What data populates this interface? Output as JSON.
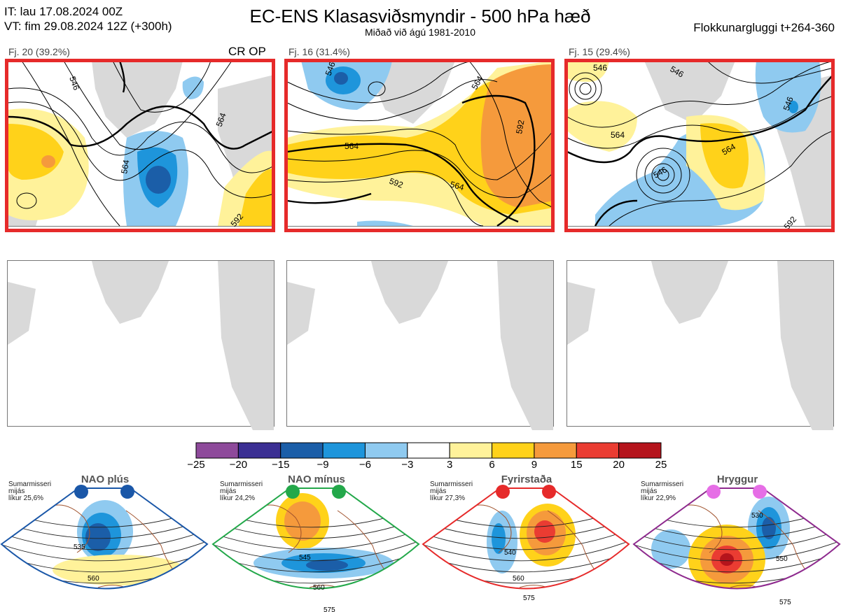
{
  "header": {
    "it_line": "IT: lau 17.08.2024 00Z",
    "vt_line": "VT: fim 29.08.2024 12Z  (+300h)",
    "title": "EC-ENS Klasasviðsmyndir - 500 hPa hæð",
    "subtitle": "Miðað við ágú 1981-2010",
    "window": "Flokkunargluggi t+264-360"
  },
  "clusters": [
    {
      "label": "Fj. 20 (39.2%)",
      "extra": "CR OP",
      "contours": [
        "564",
        "564",
        "592",
        "546"
      ]
    },
    {
      "label": "Fj. 16 (31.4%)",
      "extra": "",
      "contours": [
        "546",
        "564",
        "564",
        "592",
        "564",
        "592"
      ]
    },
    {
      "label": "Fj. 15 (29.4%)",
      "extra": "",
      "contours": [
        "546",
        "546",
        "546",
        "546",
        "564",
        "564",
        "592"
      ]
    }
  ],
  "chart_data": {
    "type": "heatmap",
    "title": "EC-ENS Klasasviðsmyndir - 500 hPa hæð",
    "colorbar": {
      "ticks": [
        "−25",
        "−20",
        "−15",
        "−9",
        "−6",
        "−3",
        "3",
        "6",
        "9",
        "15",
        "20",
        "25"
      ],
      "colors": [
        "#8e4a9b",
        "#3b2f93",
        "#1b5ea8",
        "#1e95db",
        "#8fcaf0",
        "#ffffff",
        "#fff29a",
        "#ffd21a",
        "#f59a3c",
        "#ea3c32",
        "#b5141c"
      ]
    },
    "cluster_probabilities": [
      {
        "name": "Fj. 20",
        "percent": 39.2
      },
      {
        "name": "Fj. 16",
        "percent": 31.4
      },
      {
        "name": "Fj. 15",
        "percent": 29.4
      }
    ],
    "regimes": [
      {
        "name": "NAO plús",
        "note": [
          "Sumarmisseri",
          "mijás",
          "líkur 25,6%"
        ],
        "probability_percent": 25.6,
        "contours": [
          "535",
          "560"
        ],
        "dot_color": "#1a57a8",
        "border": "#1a57a8"
      },
      {
        "name": "NAO mínus",
        "note": [
          "Sumarmisseri",
          "mijás",
          "líkur 24,2%"
        ],
        "probability_percent": 24.2,
        "contours": [
          "545",
          "560",
          "575"
        ],
        "dot_color": "#23a84a",
        "border": "#23a84a"
      },
      {
        "name": "Fyrirstaða",
        "note": [
          "Sumarmisseri",
          "mijás",
          "líkur 27,3%"
        ],
        "probability_percent": 27.3,
        "contours": [
          "540",
          "560",
          "575"
        ],
        "dot_color": "#e62a2a",
        "border": "#e62a2a"
      },
      {
        "name": "Hryggur",
        "note": [
          "Sumarmisseri",
          "mijás",
          "líkur 22,9%"
        ],
        "probability_percent": 22.9,
        "contours": [
          "530",
          "550",
          "575"
        ],
        "dot_color": "#e66ee6",
        "border": "#8e2a8e"
      }
    ]
  }
}
